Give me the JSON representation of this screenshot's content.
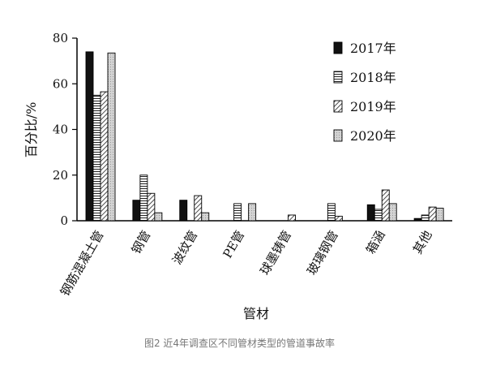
{
  "chart_data": {
    "type": "bar",
    "xlabel": "管材",
    "ylabel": "百分比/%",
    "ylim": [
      0,
      80
    ],
    "yticks": [
      "0",
      "20",
      "40",
      "60",
      "80"
    ],
    "categories": [
      "钢筋混凝土管",
      "钢管",
      "波纹管",
      "PE管",
      "球墨铸管",
      "玻璃钢管",
      "箱涵",
      "其他"
    ],
    "legend_position": "top-right",
    "grid": false,
    "series": [
      {
        "name": "2017年",
        "fill": "solid-black",
        "values": [
          74,
          9,
          9,
          0,
          0,
          0,
          7,
          1
        ]
      },
      {
        "name": "2018年",
        "fill": "horizontal-lines",
        "values": [
          55,
          20,
          0,
          7.5,
          0,
          7.5,
          5,
          2.5
        ]
      },
      {
        "name": "2019年",
        "fill": "diagonal-lines",
        "values": [
          56.5,
          12,
          11,
          0,
          2.5,
          2,
          13.5,
          6
        ]
      },
      {
        "name": "2020年",
        "fill": "light-gray-dotted",
        "values": [
          73.5,
          3.5,
          3.5,
          7.5,
          0,
          0,
          7.5,
          5.5
        ]
      }
    ]
  },
  "caption": "图2 近4年调查区不同管材类型的管道事故率"
}
